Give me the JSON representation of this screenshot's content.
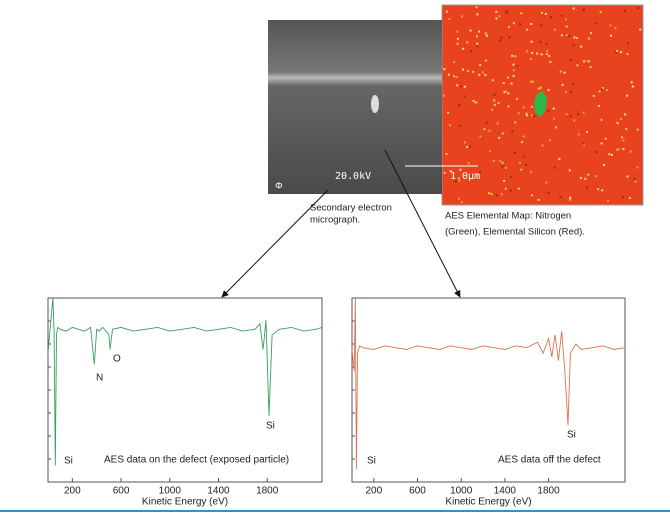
{
  "images": {
    "micrograph": {
      "voltage": "20.0kV",
      "scale": "1.0µm",
      "logo": "Φ",
      "caption": [
        "Secondary electron",
        "micrograph."
      ]
    },
    "map": {
      "caption": [
        "AES Elemental Map: Nitrogen",
        "(Green), Elemental Silicon (Red)."
      ]
    }
  },
  "chart_data": [
    {
      "type": "line",
      "x_label": "Kinetic Energy (eV)",
      "annotations": [
        "N",
        "O",
        "Si",
        "Si",
        "AES data on the defect (exposed particle)"
      ],
      "xlim": [
        0,
        2250
      ],
      "ylim": [
        0,
        100
      ],
      "xticks": [
        200,
        600,
        1000,
        1400,
        1800
      ],
      "x": [
        0,
        20,
        40,
        50,
        60,
        70,
        80,
        100,
        150,
        200,
        250,
        300,
        350,
        380,
        400,
        420,
        450,
        500,
        510,
        530,
        600,
        700,
        800,
        900,
        1000,
        1100,
        1200,
        1300,
        1400,
        1500,
        1600,
        1700,
        1740,
        1766,
        1790,
        1815,
        1840,
        1900,
        2000,
        2100,
        2200,
        2250
      ],
      "series": [
        {
          "color": "#3aa05a",
          "values": [
            70,
            85,
            100,
            82,
            9,
            80,
            84,
            83,
            82,
            84,
            83,
            82,
            84,
            64,
            83,
            82,
            84,
            80,
            72,
            83,
            84,
            82,
            83,
            84,
            82,
            83,
            84,
            82,
            83,
            84,
            82,
            83,
            86,
            72,
            88,
            36,
            80,
            83,
            84,
            82,
            83,
            84
          ]
        }
      ]
    },
    {
      "type": "line",
      "x_label": "Kinetic Energy (eV)",
      "annotations": [
        "Si",
        "Si",
        "AES data off the defect"
      ],
      "xlim": [
        0,
        2500
      ],
      "ylim": [
        0,
        100
      ],
      "xticks": [
        200,
        600,
        1000,
        1400,
        1800
      ],
      "x": [
        0,
        20,
        30,
        40,
        50,
        70,
        100,
        200,
        300,
        400,
        500,
        600,
        700,
        800,
        900,
        1000,
        1100,
        1200,
        1300,
        1400,
        1500,
        1600,
        1700,
        1750,
        1800,
        1830,
        1860,
        1890,
        1920,
        1950,
        1978,
        2000,
        2050,
        2100,
        2200,
        2300,
        2400,
        2500
      ],
      "series": [
        {
          "color": "#e07050",
          "values": [
            72,
            60,
            100,
            7,
            70,
            74,
            73,
            72,
            74,
            73,
            72,
            74,
            73,
            72,
            74,
            73,
            72,
            74,
            73,
            72,
            74,
            73,
            76,
            70,
            78,
            68,
            80,
            66,
            82,
            60,
            31,
            70,
            75,
            72,
            73,
            74,
            72,
            73
          ]
        }
      ]
    }
  ]
}
